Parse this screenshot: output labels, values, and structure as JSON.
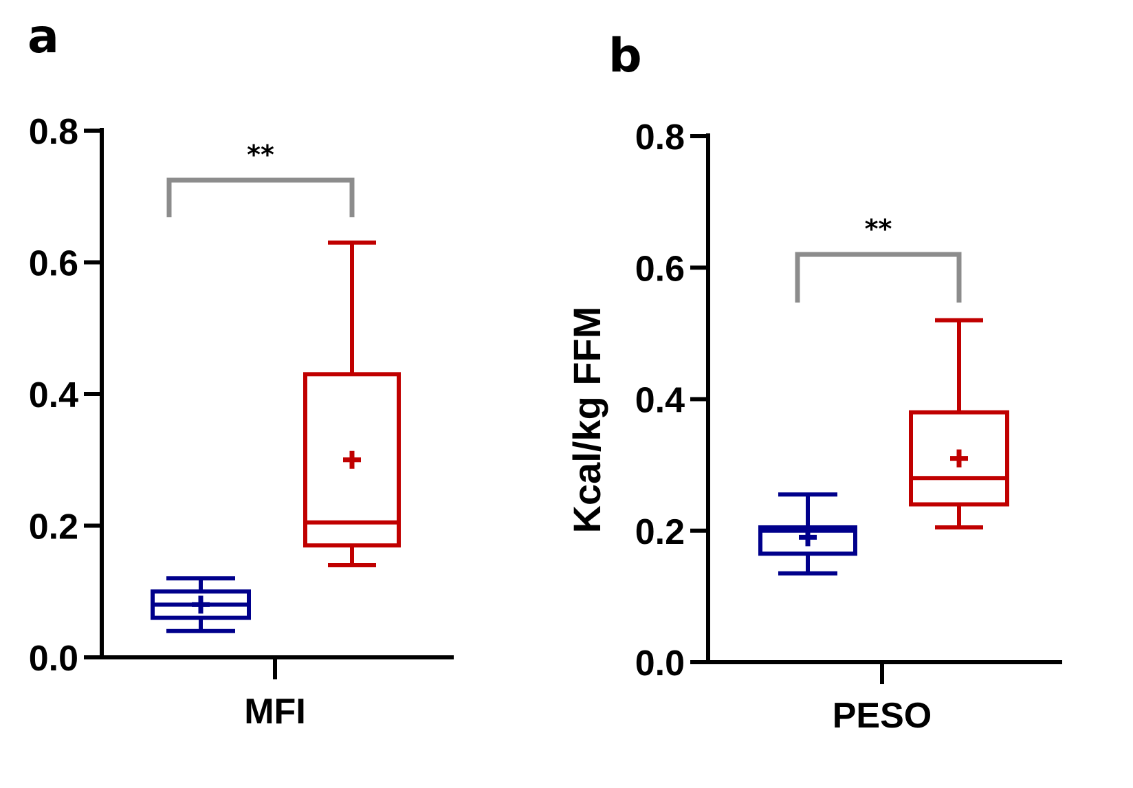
{
  "chart_data": [
    {
      "panel": "a",
      "type": "box",
      "category": "MFI",
      "ylabel": "",
      "ylim": [
        0,
        0.8
      ],
      "yticks": [
        "0.0",
        "0.2",
        "0.4",
        "0.6",
        "0.8"
      ],
      "significance": "**",
      "groups": [
        {
          "name": "group 1",
          "color": "#00008B",
          "whisker_low": 0.04,
          "q1": 0.06,
          "median": 0.08,
          "q3": 0.1,
          "whisker_high": 0.12,
          "mean": 0.08
        },
        {
          "name": "group 2",
          "color": "#C00000",
          "whisker_low": 0.14,
          "q1": 0.17,
          "median": 0.205,
          "q3": 0.43,
          "whisker_high": 0.63,
          "mean": 0.3
        }
      ]
    },
    {
      "panel": "b",
      "type": "box",
      "category": "PESO",
      "ylabel": "Kcal/kg FFM",
      "ylim": [
        0,
        0.8
      ],
      "yticks": [
        "0.0",
        "0.2",
        "0.4",
        "0.6",
        "0.8"
      ],
      "significance": "**",
      "groups": [
        {
          "name": "group 1",
          "color": "#00008B",
          "whisker_low": 0.135,
          "q1": 0.165,
          "median": 0.2,
          "q3": 0.205,
          "whisker_high": 0.255,
          "mean": 0.19
        },
        {
          "name": "group 2",
          "color": "#C00000",
          "whisker_low": 0.205,
          "q1": 0.24,
          "median": 0.28,
          "q3": 0.38,
          "whisker_high": 0.52,
          "mean": 0.31
        }
      ]
    }
  ],
  "colors": {
    "axis": "#000000",
    "bracket": "#8C8C8C"
  }
}
